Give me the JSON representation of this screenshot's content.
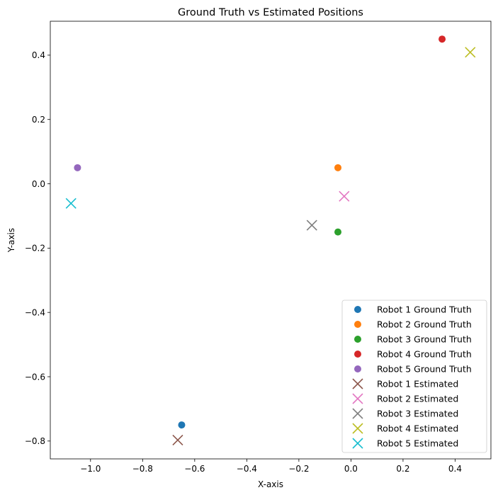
{
  "chart_data": {
    "type": "scatter",
    "title": "Ground Truth vs Estimated Positions",
    "xlabel": "X-axis",
    "ylabel": "Y-axis",
    "xlim": [
      -1.1545,
      0.5375
    ],
    "ylim": [
      -0.8555,
      0.5055
    ],
    "xticks": [
      -1.0,
      -0.8,
      -0.6,
      -0.4,
      -0.2,
      0.0,
      0.2,
      0.4
    ],
    "xtick_labels": [
      "−1.0",
      "−0.8",
      "−0.6",
      "−0.4",
      "−0.2",
      "0.0",
      "0.2",
      "0.4"
    ],
    "yticks": [
      -0.8,
      -0.6,
      -0.4,
      -0.2,
      0.0,
      0.2,
      0.4
    ],
    "ytick_labels": [
      "−0.8",
      "−0.6",
      "−0.4",
      "−0.2",
      "0.0",
      "0.2",
      "0.4"
    ],
    "grid": false,
    "legend_position": "lower right",
    "series": [
      {
        "name": "Robot 1 Ground Truth",
        "marker": "circle",
        "color": "#1f77b4",
        "x": [
          -0.65
        ],
        "y": [
          -0.75
        ]
      },
      {
        "name": "Robot 2 Ground Truth",
        "marker": "circle",
        "color": "#ff7f0e",
        "x": [
          -0.05
        ],
        "y": [
          0.05
        ]
      },
      {
        "name": "Robot 3 Ground Truth",
        "marker": "circle",
        "color": "#2ca02c",
        "x": [
          -0.05
        ],
        "y": [
          -0.15
        ]
      },
      {
        "name": "Robot 4 Ground Truth",
        "marker": "circle",
        "color": "#d62728",
        "x": [
          0.35
        ],
        "y": [
          0.45
        ]
      },
      {
        "name": "Robot 5 Ground Truth",
        "marker": "circle",
        "color": "#9467bd",
        "x": [
          -1.05
        ],
        "y": [
          0.05
        ]
      },
      {
        "name": "Robot 1 Estimated",
        "marker": "x",
        "color": "#8c564b",
        "x": [
          -0.665
        ],
        "y": [
          -0.797
        ]
      },
      {
        "name": "Robot 2 Estimated",
        "marker": "x",
        "color": "#e377c2",
        "x": [
          -0.026
        ],
        "y": [
          -0.039
        ]
      },
      {
        "name": "Robot 3 Estimated",
        "marker": "x",
        "color": "#7f7f7f",
        "x": [
          -0.15
        ],
        "y": [
          -0.129
        ]
      },
      {
        "name": "Robot 4 Estimated",
        "marker": "x",
        "color": "#bcbd22",
        "x": [
          0.458
        ],
        "y": [
          0.409
        ]
      },
      {
        "name": "Robot 5 Estimated",
        "marker": "x",
        "color": "#17becf",
        "x": [
          -1.075
        ],
        "y": [
          -0.061
        ]
      }
    ]
  }
}
